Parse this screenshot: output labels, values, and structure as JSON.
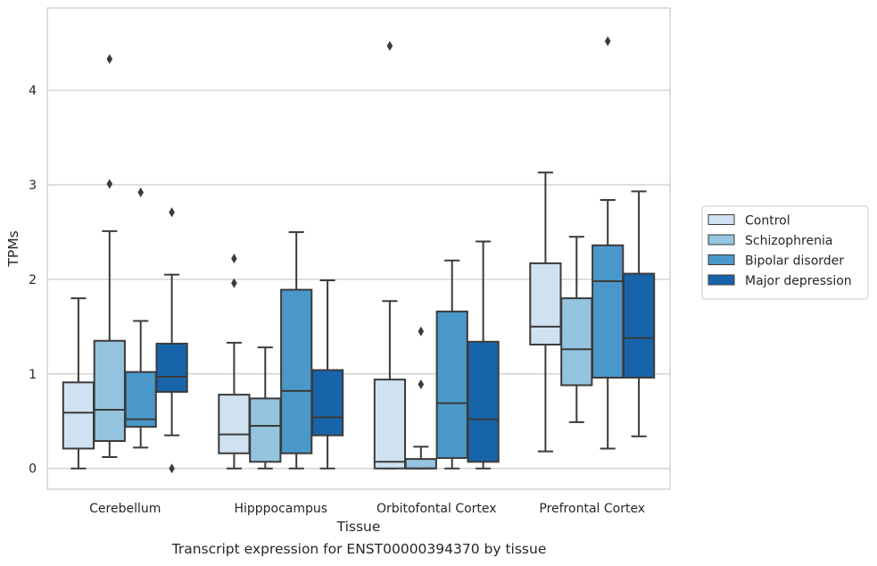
{
  "caption": "Transcript expression for ENST00000394370 by tissue",
  "chart_data": {
    "type": "box",
    "xlabel": "Tissue",
    "ylabel": "TPMs",
    "ylim": [
      -0.22,
      4.87
    ],
    "yticks": [
      0,
      1,
      2,
      3,
      4
    ],
    "grid": "horizontal",
    "legend_position": "right",
    "categories": [
      "Cerebellum",
      "Hipppocampus",
      "Orbitofontal Cortex",
      "Prefrontal Cortex"
    ],
    "series": [
      {
        "name": "Control",
        "color": "#d0e1f2",
        "boxes": [
          {
            "whislo": 0.0,
            "q1": 0.21,
            "med": 0.59,
            "q3": 0.91,
            "whishi": 1.8,
            "fliers": []
          },
          {
            "whislo": 0.0,
            "q1": 0.16,
            "med": 0.36,
            "q3": 0.78,
            "whishi": 1.33,
            "fliers": [
              1.96,
              2.22
            ]
          },
          {
            "whislo": 0.0,
            "q1": 0.0,
            "med": 0.07,
            "q3": 0.94,
            "whishi": 1.77,
            "fliers": [
              4.47
            ]
          },
          {
            "whislo": 0.18,
            "q1": 1.31,
            "med": 1.5,
            "q3": 2.17,
            "whishi": 3.13,
            "fliers": []
          }
        ]
      },
      {
        "name": "Schizophrenia",
        "color": "#94c4df",
        "boxes": [
          {
            "whislo": 0.12,
            "q1": 0.29,
            "med": 0.62,
            "q3": 1.35,
            "whishi": 2.51,
            "fliers": [
              3.01,
              4.33
            ]
          },
          {
            "whislo": 0.0,
            "q1": 0.07,
            "med": 0.45,
            "q3": 0.74,
            "whishi": 1.28,
            "fliers": []
          },
          {
            "whislo": 0.0,
            "q1": 0.0,
            "med": 0.0,
            "q3": 0.1,
            "whishi": 0.23,
            "fliers": [
              0.89,
              1.45
            ]
          },
          {
            "whislo": 0.49,
            "q1": 0.88,
            "med": 1.26,
            "q3": 1.8,
            "whishi": 2.45,
            "fliers": []
          }
        ]
      },
      {
        "name": "Bipolar disorder",
        "color": "#4a98c9",
        "boxes": [
          {
            "whislo": 0.22,
            "q1": 0.44,
            "med": 0.52,
            "q3": 1.02,
            "whishi": 1.56,
            "fliers": [
              2.92
            ]
          },
          {
            "whislo": 0.0,
            "q1": 0.16,
            "med": 0.82,
            "q3": 1.89,
            "whishi": 2.5,
            "fliers": []
          },
          {
            "whislo": 0.0,
            "q1": 0.11,
            "med": 0.69,
            "q3": 1.66,
            "whishi": 2.2,
            "fliers": []
          },
          {
            "whislo": 0.21,
            "q1": 0.96,
            "med": 1.98,
            "q3": 2.36,
            "whishi": 2.84,
            "fliers": [
              4.52
            ]
          }
        ]
      },
      {
        "name": "Major depression",
        "color": "#1764ab",
        "boxes": [
          {
            "whislo": 0.35,
            "q1": 0.81,
            "med": 0.97,
            "q3": 1.32,
            "whishi": 2.05,
            "fliers": [
              0.0,
              2.71
            ]
          },
          {
            "whislo": 0.0,
            "q1": 0.35,
            "med": 0.54,
            "q3": 1.04,
            "whishi": 1.99,
            "fliers": []
          },
          {
            "whislo": 0.0,
            "q1": 0.07,
            "med": 0.52,
            "q3": 1.34,
            "whishi": 2.4,
            "fliers": []
          },
          {
            "whislo": 0.34,
            "q1": 0.96,
            "med": 1.38,
            "q3": 2.06,
            "whishi": 2.93,
            "fliers": []
          }
        ]
      }
    ]
  }
}
